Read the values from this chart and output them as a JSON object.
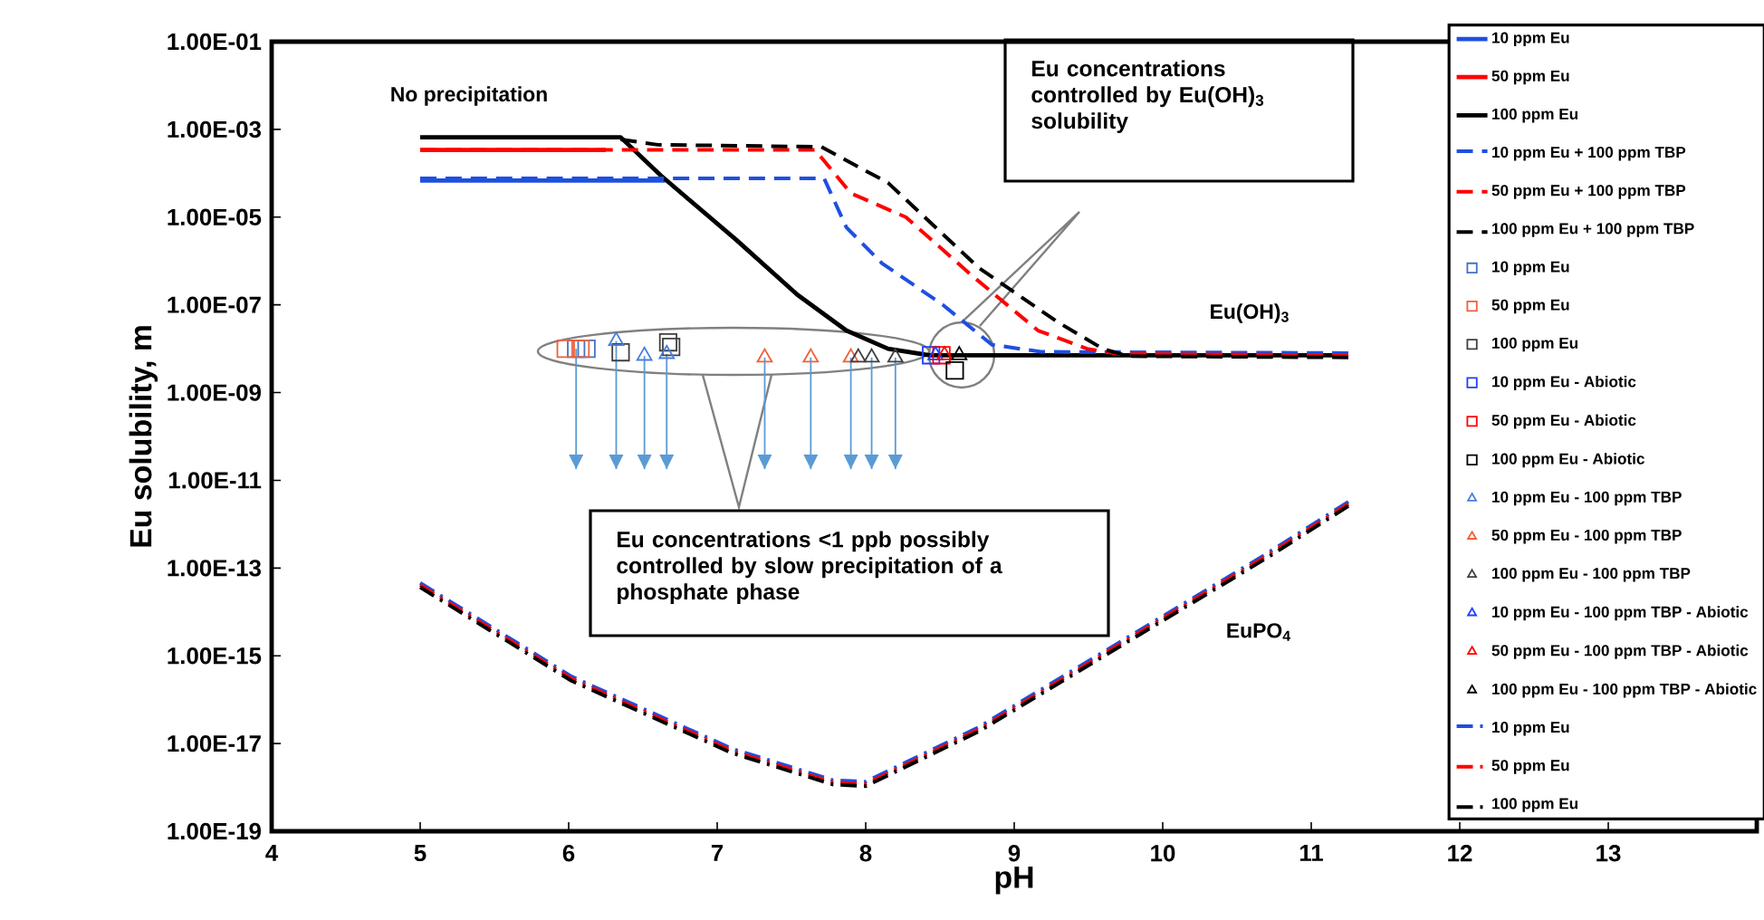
{
  "chart_data": {
    "type": "line",
    "xlabel": "pH",
    "ylabel": "Eu solubility, m",
    "log": "y",
    "legend": "top right",
    "xlim": [
      4,
      14
    ],
    "xticks": [
      4,
      5,
      6,
      7,
      8,
      9,
      10,
      11,
      12,
      13
    ],
    "ylim": [
      1e-19,
      0.1
    ],
    "yticks": [
      {
        "value": 0.1,
        "label": "1.00E-01"
      },
      {
        "value": 0.001,
        "label": "1.00E-03"
      },
      {
        "value": 1e-05,
        "label": "1.00E-05"
      },
      {
        "value": 1e-07,
        "label": "1.00E-07"
      },
      {
        "value": 1e-09,
        "label": "1.00E-09"
      },
      {
        "value": 1e-11,
        "label": "1.00E-11"
      },
      {
        "value": 1e-13,
        "label": "1.00E-13"
      },
      {
        "value": 1e-15,
        "label": "1.00E-15"
      },
      {
        "value": 1e-17,
        "label": "1.00E-17"
      },
      {
        "value": 1e-19,
        "label": "1.00E-19"
      }
    ],
    "annotations": [
      "No precipitation",
      "Eu concentrations controlled by Eu(OH)$_{3}$ solubility",
      "Eu(OH)$_{3}$",
      "Eu concentrations <1 ppb possibly controlled by slow precipitation of a phosphate phase",
      "EuPO$_{4}$"
    ],
    "series": [
      {
        "name": "10 ppm Eu",
        "line_style": "solid",
        "color": "#1f4fe0",
        "x": [
          5,
          6.65
        ],
        "values": [
          6.8e-05,
          6.8e-05
        ]
      },
      {
        "name": "50 ppm Eu",
        "line_style": "solid",
        "color": "#ff0000",
        "x": [
          5,
          6.25
        ],
        "values": [
          0.00034,
          0.00034
        ]
      },
      {
        "name": "100 ppm Eu",
        "line_style": "solid",
        "color": "#000000",
        "x": [
          5,
          6.35,
          6.62,
          7.13,
          7.54,
          7.87,
          8.15,
          8.43,
          11.25
        ],
        "values": [
          0.00066,
          0.00066,
          8.9e-05,
          3e-06,
          1.7e-07,
          2.6e-08,
          1e-08,
          7.1e-09,
          7.1e-09
        ]
      },
      {
        "name": "10 ppm Eu + 100 ppm TBP",
        "line_style": "dashed",
        "color": "#1f4fe0",
        "x": [
          5,
          7.72,
          7.87,
          8.11,
          8.52,
          8.85,
          9.18,
          11.25
        ],
        "values": [
          6.8e-05,
          6.8e-05,
          5.2e-06,
          7.9e-07,
          8.9e-08,
          1.1e-08,
          7.6e-09,
          7.1e-09
        ]
      },
      {
        "name": "50 ppm Eu + 100 ppm TBP",
        "line_style": "dashed",
        "color": "#ff0000",
        "x": [
          5,
          7.66,
          7.9,
          8.27,
          8.72,
          9.16,
          9.49,
          9.7,
          11.25
        ],
        "values": [
          0.00034,
          0.00034,
          3.5e-05,
          1e-05,
          4.5e-07,
          2.6e-08,
          1e-08,
          7.6e-09,
          7.1e-09
        ]
      },
      {
        "name": "100 ppm Eu + 100 ppm TBP",
        "line_style": "dashed",
        "color": "#000000",
        "x": [
          6.35,
          6.6,
          7.7,
          8.15,
          8.76,
          9.29,
          9.6,
          9.77,
          11.25
        ],
        "values": [
          0.00066,
          0.0005,
          0.00045,
          6.8e-05,
          7.9e-07,
          4.6e-08,
          1.1e-08,
          7.6e-09,
          7.1e-09
        ]
      },
      {
        "name": "10 ppm Eu",
        "type": "scatter",
        "marker": "square",
        "color": "#4472c4",
        "x": [
          6.05,
          6.12
        ],
        "values": [
          1e-08,
          1e-08
        ],
        "errors": [
          [
            1.8e-11,
            1e-08
          ],
          null
        ]
      },
      {
        "name": "50 ppm Eu",
        "type": "scatter",
        "marker": "square",
        "color": "#f0603a",
        "x": [
          5.98,
          6.08
        ],
        "values": [
          1e-08,
          1e-08
        ]
      },
      {
        "name": "100 ppm Eu",
        "type": "scatter",
        "marker": "square",
        "color": "#404040",
        "x": [
          6.35,
          6.67,
          6.69
        ],
        "values": [
          8.3e-09,
          1.4e-08,
          1.1e-08
        ]
      },
      {
        "name": "10 ppm Eu - Abiotic",
        "type": "scatter",
        "marker": "square",
        "color": "#1f3fff",
        "x": [
          8.44
        ],
        "values": [
          7.1e-09
        ]
      },
      {
        "name": "50 ppm Eu - Abiotic",
        "type": "scatter",
        "marker": "square",
        "color": "#ff0000",
        "x": [
          8.51
        ],
        "values": [
          7.1e-09
        ]
      },
      {
        "name": "100 ppm Eu - Abiotic",
        "type": "scatter",
        "marker": "square",
        "color": "#000000",
        "x": [
          8.6
        ],
        "values": [
          3.2e-09
        ]
      },
      {
        "name": "10 ppm Eu - 100 ppm TBP",
        "type": "scatter",
        "marker": "triangle",
        "color": "#4a7ee0",
        "x": [
          6.32,
          6.51,
          6.66
        ],
        "values": [
          1.5e-08,
          6.9e-09,
          7.6e-09
        ],
        "errors": [
          [
            1.8e-11,
            1.5e-08
          ],
          [
            1.8e-11,
            6.9e-09
          ],
          [
            1.8e-11,
            7.6e-09
          ]
        ]
      },
      {
        "name": "50 ppm Eu - 100 ppm TBP",
        "type": "scatter",
        "marker": "triangle",
        "color": "#f0603a",
        "x": [
          7.32,
          7.63,
          7.9
        ],
        "values": [
          6.3e-09,
          6.3e-09,
          6.3e-09
        ],
        "errors": [
          [
            1.8e-11,
            6.3e-09
          ],
          [
            1.8e-11,
            6.3e-09
          ],
          [
            1.8e-11,
            6.3e-09
          ]
        ]
      },
      {
        "name": "100 ppm Eu - 100 ppm TBP",
        "type": "scatter",
        "marker": "triangle",
        "color": "#404040",
        "x": [
          7.95,
          8.04,
          8.2
        ],
        "values": [
          6.3e-09,
          6.3e-09,
          6.3e-09
        ],
        "errors": [
          null,
          [
            1.8e-11,
            6.3e-09
          ],
          [
            1.8e-11,
            6.3e-09
          ]
        ]
      },
      {
        "name": "10 ppm Eu - 100 ppm TBP - Abiotic",
        "type": "scatter",
        "marker": "triangle",
        "color": "#1f3fff",
        "x": [
          8.47
        ],
        "values": [
          7.1e-09
        ]
      },
      {
        "name": "50 ppm Eu - 100 ppm TBP - Abiotic",
        "type": "scatter",
        "marker": "triangle",
        "color": "#ff0000",
        "x": [
          8.53
        ],
        "values": [
          7.1e-09
        ]
      },
      {
        "name": "100 ppm Eu - 100 ppm TBP - Abiotic",
        "type": "scatter",
        "marker": "triangle",
        "color": "#000000",
        "x": [
          8.63
        ],
        "values": [
          7.1e-09
        ]
      },
      {
        "name": "10 ppm Eu",
        "line_style": "dashdot",
        "color": "#1f4fe0",
        "x": [
          5,
          6.02,
          7.1,
          7.78,
          8.0,
          8.76,
          9.73,
          10.7,
          11.25
        ],
        "values": [
          4.1e-14,
          3e-16,
          6.8e-18,
          1.3e-18,
          1.2e-18,
          2.1e-17,
          2e-15,
          1.9e-13,
          2.9e-12
        ]
      },
      {
        "name": "50 ppm Eu",
        "line_style": "dashdot",
        "color": "#ff0000",
        "x": [
          5,
          6.02,
          7.1,
          7.78,
          8.0,
          8.76,
          9.73,
          10.7,
          11.25
        ],
        "values": [
          4.1e-14,
          3e-16,
          6.8e-18,
          1.3e-18,
          1.2e-18,
          2.1e-17,
          2e-15,
          1.9e-13,
          2.9e-12
        ]
      },
      {
        "name": "100 ppm Eu",
        "line_style": "dashdot",
        "color": "#000000",
        "x": [
          5,
          6.02,
          7.1,
          7.78,
          8.0,
          8.76,
          9.73,
          10.7,
          11.25
        ],
        "values": [
          4.1e-14,
          3e-16,
          6.8e-18,
          1.3e-18,
          1.2e-18,
          2.1e-17,
          2e-15,
          1.9e-13,
          2.9e-12
        ]
      }
    ]
  }
}
